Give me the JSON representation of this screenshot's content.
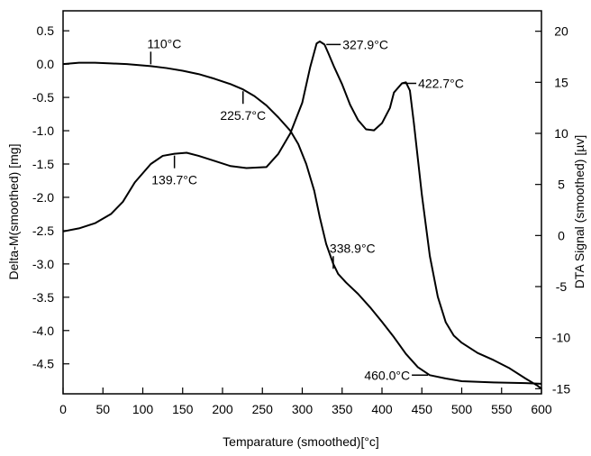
{
  "chart_data": {
    "type": "line",
    "xlabel": "Temparature (smoothed)[°c]",
    "ylabel_left": "Delta-M(smoothed) [mg]",
    "ylabel_right": "DTA Signal (smoothed) [µv]",
    "xlim": [
      0,
      600
    ],
    "ylim_left": [
      -4.95,
      0.8
    ],
    "ylim_right": [
      -15.5,
      22
    ],
    "x_ticks": [
      0,
      50,
      100,
      150,
      200,
      250,
      300,
      350,
      400,
      450,
      500,
      550,
      600
    ],
    "y_left_ticks": [
      0.5,
      0.0,
      -0.5,
      -1.0,
      -1.5,
      -2.0,
      -2.5,
      -3.0,
      -3.5,
      -4.0,
      -4.5
    ],
    "y_left_tick_labels": [
      "0.5",
      "0.0",
      "-0.5",
      "-1.0",
      "-1.5",
      "-2.0",
      "-2.5",
      "-3.0",
      "-3.5",
      "-4.0",
      "-4.5"
    ],
    "y_right_ticks": [
      20,
      15,
      10,
      5,
      0,
      -5,
      -10,
      -15
    ],
    "grid": false,
    "series": [
      {
        "axis": "left",
        "x": [
          0,
          20,
          40,
          60,
          80,
          100,
          110,
          130,
          150,
          170,
          190,
          210,
          225.7,
          240,
          255,
          270,
          285,
          295,
          305,
          315,
          322,
          330,
          338.9,
          345,
          355,
          370,
          385,
          400,
          415,
          430,
          445,
          460,
          480,
          500,
          540,
          580,
          600
        ],
        "y": [
          0.0,
          0.02,
          0.02,
          0.01,
          0.0,
          -0.02,
          -0.03,
          -0.06,
          -0.1,
          -0.15,
          -0.22,
          -0.3,
          -0.38,
          -0.48,
          -0.62,
          -0.8,
          -1.0,
          -1.2,
          -1.5,
          -1.9,
          -2.3,
          -2.7,
          -3.0,
          -3.15,
          -3.28,
          -3.45,
          -3.65,
          -3.87,
          -4.1,
          -4.35,
          -4.55,
          -4.67,
          -4.72,
          -4.76,
          -4.78,
          -4.79,
          -4.8
        ]
      },
      {
        "axis": "right",
        "x": [
          0,
          20,
          40,
          60,
          75,
          90,
          110,
          125,
          139.7,
          155,
          170,
          190,
          210,
          230,
          255,
          270,
          285,
          300,
          310,
          318,
          322,
          327.9,
          333,
          340,
          350,
          360,
          370,
          380,
          390,
          400,
          410,
          415,
          425,
          430,
          435,
          440,
          450,
          460,
          470,
          480,
          490,
          500,
          520,
          540,
          560,
          580,
          595,
          600
        ],
        "y": [
          0.4,
          0.7,
          1.2,
          2.1,
          3.3,
          5.2,
          7.0,
          7.8,
          8.0,
          8.1,
          7.8,
          7.3,
          6.8,
          6.6,
          6.7,
          8.0,
          10.0,
          13.0,
          16.5,
          18.8,
          19.0,
          18.7,
          17.8,
          16.5,
          14.8,
          12.8,
          11.3,
          10.4,
          10.3,
          11.0,
          12.5,
          14.0,
          14.9,
          15.0,
          14.2,
          11.0,
          4.0,
          -2.0,
          -6.0,
          -8.5,
          -9.8,
          -10.5,
          -11.5,
          -12.2,
          -13.0,
          -14.0,
          -14.7,
          -15.0
        ]
      }
    ],
    "annotations": [
      {
        "text": "110°C",
        "x": 110,
        "axis": "left",
        "y": -0.03,
        "label_side": "above"
      },
      {
        "text": "225.7°C",
        "x": 225.7,
        "axis": "left",
        "y": -0.38,
        "label_side": "below"
      },
      {
        "text": "139.7°C",
        "x": 139.7,
        "axis": "right",
        "y": 8.0,
        "label_side": "below"
      },
      {
        "text": "327.9°C",
        "x": 327.9,
        "axis": "right",
        "y": 18.7,
        "label_side": "right"
      },
      {
        "text": "422.7°C",
        "x": 422.7,
        "axis": "right",
        "y": 14.9,
        "label_side": "right"
      },
      {
        "text": "338.9°C",
        "x": 338.9,
        "axis": "left",
        "y": -3.1,
        "label_side": "above"
      },
      {
        "text": "460.0°C",
        "x": 460,
        "axis": "left",
        "y": -4.67,
        "label_side": "left"
      }
    ]
  }
}
